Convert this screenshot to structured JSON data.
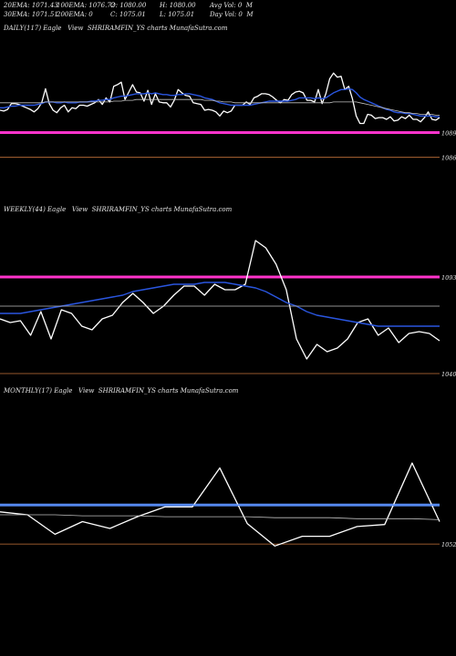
{
  "header": {
    "row1": [
      {
        "label": "20EMA: 1071.43"
      },
      {
        "label": "100EMA: 1076.72"
      },
      {
        "label": "O: 1080.00"
      },
      {
        "label": "H: 1080.00"
      },
      {
        "label": "Avg Vol: 0  M"
      }
    ],
    "row2": [
      {
        "label": "30EMA: 1071.51"
      },
      {
        "label": "200EMA: 0"
      },
      {
        "label": "C: 1075.01"
      },
      {
        "label": "L: 1075.01"
      },
      {
        "label": "Day Vol: 0  M"
      }
    ]
  },
  "panels": [
    {
      "title": "DAILY(117) Eagle   View  SHRIRAMFIN_YS charts MunafaSutra.com"
    },
    {
      "title": "WEEKLY(44) Eagle   View  SHRIRAMFIN_YS charts MunafaSutra.com"
    },
    {
      "title": "MONTHLY(17) Eagle   View  SHRIRAMFIN_YS charts MunafaSutra.com"
    }
  ],
  "colors": {
    "background": "#000000",
    "price": "#ffffff",
    "ema_blue": "#2a56e0",
    "magenta": "#ff33cc",
    "level_line": "#c8743a",
    "avg_line": "#bfbfbf",
    "monthly_blue": "#5588ee"
  },
  "chart_data": [
    {
      "type": "line",
      "title": "DAILY(117) Eagle   View  SHRIRAMFIN_YS charts MunafaSutra.com",
      "ylim": [
        1081,
        1096
      ],
      "levels": [
        {
          "value": 1089,
          "label": "1089"
        },
        {
          "value": 1086,
          "label": "1086"
        }
      ],
      "series": [
        {
          "kind": "price",
          "color": "#ffffff",
          "values": [
            1091.7,
            1091.6,
            1091.8,
            1092.5,
            1092.5,
            1092.4,
            1092.2,
            1092.0,
            1091.8,
            1091.5,
            1091.9,
            1092.6,
            1094.3,
            1092.5,
            1091.7,
            1091.4,
            1092.0,
            1092.3,
            1091.5,
            1092.0,
            1091.9,
            1092.3,
            1092.3,
            1092.2,
            1092.4,
            1092.6,
            1093.0,
            1092.4,
            1093.2,
            1092.7,
            1094.6,
            1094.8,
            1095.1,
            1093.0,
            1093.9,
            1094.8,
            1093.9,
            1093.8,
            1092.8,
            1094.1,
            1092.4,
            1093.7,
            1092.7,
            1092.6,
            1092.6,
            1092.1,
            1092.9,
            1094.2,
            1093.8,
            1093.5,
            1093.4,
            1092.6,
            1092.5,
            1092.4,
            1091.7,
            1091.8,
            1091.7,
            1091.5,
            1091.0,
            1091.6,
            1091.4,
            1091.6,
            1092.3,
            1092.3,
            1092.3,
            1092.7,
            1092.4,
            1093.2,
            1093.4,
            1093.7,
            1093.7,
            1093.6,
            1093.3,
            1092.9,
            1092.6,
            1093.0,
            1092.9,
            1093.6,
            1093.9,
            1094.0,
            1093.8,
            1092.9,
            1092.9,
            1092.7,
            1094.2,
            1092.5,
            1093.7,
            1095.5,
            1096.2,
            1095.7,
            1095.8,
            1094.2,
            1094.6,
            1093.1,
            1091.0,
            1090.1,
            1090.1,
            1091.2,
            1091.1,
            1090.7,
            1090.8,
            1090.8,
            1090.6,
            1090.9,
            1090.4,
            1090.5,
            1090.9,
            1090.7,
            1091.1,
            1090.6,
            1090.6,
            1090.3,
            1090.8,
            1091.5,
            1090.6,
            1090.5,
            1090.8
          ]
        },
        {
          "kind": "ema",
          "color": "#2a56e0",
          "values": [
            1092.0,
            1092.0,
            1092.1,
            1092.2,
            1092.2,
            1092.3,
            1092.3,
            1092.3,
            1092.3,
            1092.3,
            1092.4,
            1092.5,
            1092.7,
            1092.7,
            1092.7,
            1092.6,
            1092.6,
            1092.7,
            1092.6,
            1092.6,
            1092.6,
            1092.7,
            1092.7,
            1092.7,
            1092.8,
            1092.8,
            1092.9,
            1092.9,
            1093.0,
            1093.0,
            1093.2,
            1093.3,
            1093.4,
            1093.4,
            1093.5,
            1093.6,
            1093.7,
            1093.7,
            1093.7,
            1093.8,
            1093.7,
            1093.8,
            1093.7,
            1093.6,
            1093.6,
            1093.5,
            1093.5,
            1093.6,
            1093.6,
            1093.7,
            1093.7,
            1093.6,
            1093.5,
            1093.4,
            1093.2,
            1093.1,
            1093.0,
            1092.8,
            1092.6,
            1092.5,
            1092.4,
            1092.3,
            1092.3,
            1092.3,
            1092.3,
            1092.3,
            1092.3,
            1092.4,
            1092.5,
            1092.6,
            1092.7,
            1092.8,
            1092.8,
            1092.8,
            1092.8,
            1092.8,
            1092.8,
            1092.9,
            1093.0,
            1093.2,
            1093.2,
            1093.2,
            1093.2,
            1093.1,
            1093.2,
            1093.1,
            1093.2,
            1093.5,
            1093.8,
            1094.0,
            1094.2,
            1094.2,
            1094.3,
            1094.2,
            1093.8,
            1093.3,
            1093.0,
            1092.8,
            1092.6,
            1092.4,
            1092.2,
            1092.0,
            1091.8,
            1091.7,
            1091.5,
            1091.4,
            1091.4,
            1091.3,
            1091.3,
            1091.2,
            1091.1,
            1091.0,
            1091.0,
            1091.0,
            1091.0,
            1090.9,
            1090.9
          ]
        },
        {
          "kind": "avg",
          "color": "#bfbfbf",
          "values": [
            1092.6,
            1092.6,
            1092.6,
            1092.6,
            1092.6,
            1092.6,
            1092.6,
            1092.6,
            1092.6,
            1092.6,
            1092.6,
            1092.6,
            1092.7,
            1092.7,
            1092.7,
            1092.7,
            1092.7,
            1092.7,
            1092.7,
            1092.7,
            1092.7,
            1092.7,
            1092.7,
            1092.7,
            1092.7,
            1092.7,
            1092.7,
            1092.7,
            1092.7,
            1092.7,
            1092.8,
            1092.8,
            1092.8,
            1092.9,
            1092.9,
            1092.9,
            1093.0,
            1093.0,
            1093.0,
            1093.0,
            1093.0,
            1093.0,
            1093.0,
            1093.0,
            1093.0,
            1093.0,
            1093.0,
            1093.0,
            1093.0,
            1093.0,
            1093.0,
            1093.0,
            1093.0,
            1093.0,
            1092.9,
            1092.9,
            1092.9,
            1092.8,
            1092.8,
            1092.7,
            1092.7,
            1092.7,
            1092.6,
            1092.6,
            1092.6,
            1092.6,
            1092.6,
            1092.6,
            1092.6,
            1092.6,
            1092.6,
            1092.6,
            1092.6,
            1092.6,
            1092.6,
            1092.6,
            1092.6,
            1092.6,
            1092.6,
            1092.6,
            1092.6,
            1092.6,
            1092.6,
            1092.6,
            1092.6,
            1092.6,
            1092.6,
            1092.6,
            1092.7,
            1092.7,
            1092.7,
            1092.7,
            1092.7,
            1092.7,
            1092.7,
            1092.6,
            1092.5,
            1092.4,
            1092.3,
            1092.2,
            1092.1,
            1092.0,
            1091.9,
            1091.8,
            1091.7,
            1091.6,
            1091.5,
            1091.4,
            1091.4,
            1091.3,
            1091.3,
            1091.2,
            1091.2,
            1091.2,
            1091.2,
            1091.1,
            1091.1
          ]
        }
      ]
    },
    {
      "type": "line",
      "title": "WEEKLY(44) Eagle   View  SHRIRAMFIN_YS charts MunafaSutra.com",
      "ylim": [
        1040,
        1100
      ],
      "levels": [
        {
          "value": 1093,
          "label": "1093"
        },
        {
          "value": 1040,
          "label": "1040"
        }
      ],
      "series": [
        {
          "kind": "price",
          "color": "#ffffff",
          "values": [
            1070,
            1068,
            1069,
            1061,
            1074,
            1059,
            1075,
            1073,
            1066,
            1064,
            1070,
            1072,
            1079,
            1084,
            1079,
            1073,
            1077,
            1083,
            1088,
            1088,
            1083,
            1089,
            1086,
            1086,
            1089,
            1113,
            1109,
            1100,
            1086,
            1059,
            1048,
            1056,
            1052,
            1054,
            1059,
            1068,
            1070,
            1061,
            1065,
            1057,
            1062,
            1063,
            1062,
            1058
          ]
        },
        {
          "kind": "ema",
          "color": "#2a56e0",
          "values": [
            1073,
            1073,
            1073,
            1074,
            1075,
            1076,
            1077,
            1078,
            1079,
            1080,
            1081,
            1082,
            1083,
            1085,
            1086,
            1087,
            1088,
            1089,
            1089,
            1089,
            1090,
            1090,
            1090,
            1089,
            1088,
            1087,
            1085,
            1082,
            1079,
            1077,
            1074,
            1072,
            1071,
            1070,
            1069,
            1068,
            1067,
            1066,
            1066,
            1066,
            1066,
            1066,
            1066,
            1066
          ]
        },
        {
          "kind": "avg",
          "color": "#bfbfbf",
          "values": [
            1077,
            1077,
            1077,
            1077,
            1077,
            1077,
            1077,
            1077,
            1077,
            1077,
            1077,
            1077,
            1077,
            1077,
            1077,
            1077,
            1077,
            1077,
            1077,
            1077,
            1077,
            1077,
            1077,
            1077,
            1077,
            1077,
            1077,
            1077,
            1077,
            1077,
            1077,
            1077,
            1077,
            1077,
            1077,
            1077,
            1077,
            1077,
            1077,
            1077,
            1077,
            1077,
            1077,
            1077
          ]
        }
      ]
    },
    {
      "type": "line",
      "title": "MONTHLY(17) Eagle   View  SHRIRAMFIN_YS charts MunafaSutra.com",
      "ylim": [
        1040,
        1180
      ],
      "levels": [
        {
          "value": 1052,
          "label": "1052"
        }
      ],
      "series": [
        {
          "kind": "price",
          "color": "#ffffff",
          "values": [
            1085,
            1082,
            1062,
            1075,
            1068,
            1080,
            1090,
            1090,
            1130,
            1073,
            1050,
            1060,
            1060,
            1070,
            1072,
            1135,
            1075
          ]
        },
        {
          "kind": "ema",
          "color": "#5588ee",
          "values": [
            1092,
            1092,
            1092,
            1092,
            1092,
            1092,
            1092,
            1092,
            1092,
            1092,
            1092,
            1092,
            1092,
            1092,
            1092,
            1092,
            1092
          ]
        },
        {
          "kind": "avg",
          "color": "#bfbfbf",
          "values": [
            1082,
            1082,
            1082,
            1081,
            1081,
            1081,
            1080,
            1080,
            1080,
            1080,
            1079,
            1079,
            1079,
            1078,
            1078,
            1078,
            1077
          ]
        }
      ]
    }
  ]
}
